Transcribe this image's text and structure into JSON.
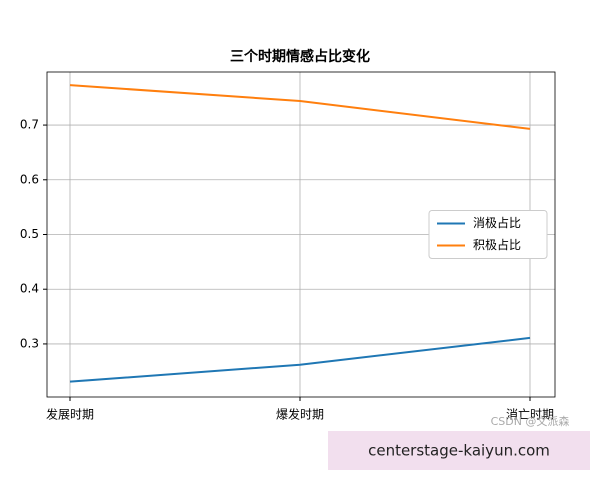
{
  "chart_data": {
    "type": "line",
    "title": "三个时期情感占比变化",
    "categories": [
      "发展时期",
      "爆发时期",
      "消亡时期"
    ],
    "series": [
      {
        "name": "消极占比",
        "color": "#1f77b4",
        "values": [
          0.231,
          0.262,
          0.311
        ]
      },
      {
        "name": "积极占比",
        "color": "#ff7f0e",
        "values": [
          0.773,
          0.744,
          0.693
        ]
      }
    ],
    "ylim": [
      0.203,
      0.797
    ],
    "yticks": [
      0.3,
      0.4,
      0.5,
      0.6,
      0.7
    ],
    "grid": true,
    "legend": "center right"
  },
  "watermark": "CSDN @文派森",
  "banner": "centerstage-kaiyun.com"
}
